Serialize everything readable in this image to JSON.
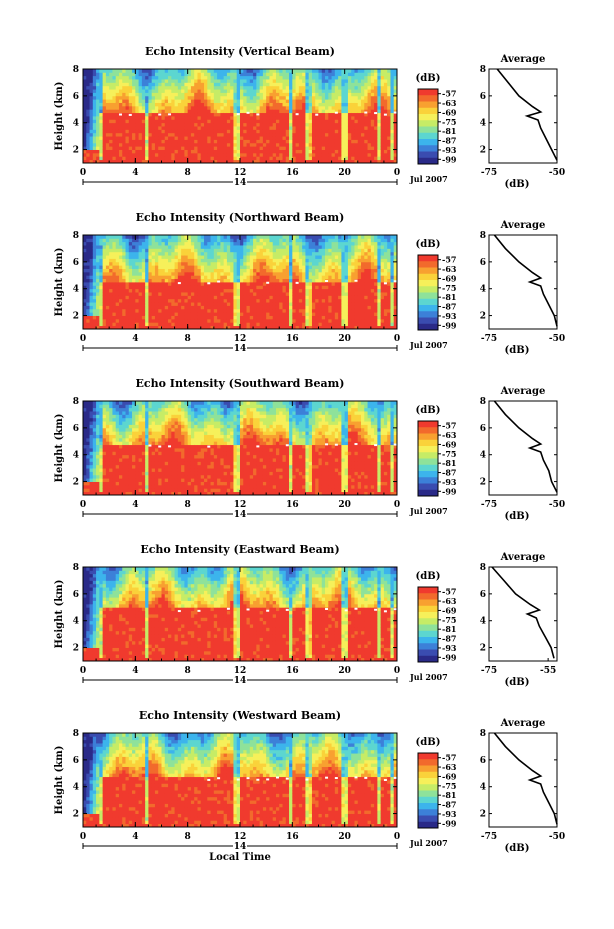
{
  "chart_data": [
    {
      "type": "heatmap",
      "title": "Echo Intensity (Vertical Beam)",
      "ylabel": "Height (km)",
      "x_ticks": [
        "0",
        "4",
        "8",
        "12",
        "16",
        "20",
        "0"
      ],
      "xlim": [
        0,
        24
      ],
      "y_ticks": [
        "2",
        "4",
        "6",
        "8"
      ],
      "ylim": [
        1,
        8
      ],
      "date_label": "14",
      "date_note": "Jul 2007",
      "colorbar": {
        "unit": "(dB)",
        "ticks": [
          "-57",
          "-63",
          "-69",
          "-75",
          "-81",
          "-87",
          "-93",
          "-99"
        ]
      },
      "bright_band_km": 4.8,
      "average": {
        "title": "Average",
        "xlabel": "(dB)",
        "x_ticks": [
          "-75",
          "-50"
        ],
        "xlim": [
          -75,
          -50
        ],
        "y_ticks": [
          "2",
          "4",
          "6",
          "8"
        ],
        "profile": [
          [
            -50,
            1.2
          ],
          [
            -52,
            2.0
          ],
          [
            -54,
            2.8
          ],
          [
            -56,
            3.6
          ],
          [
            -57,
            4.2
          ],
          [
            -61,
            4.5
          ],
          [
            -56,
            4.8
          ],
          [
            -59,
            5.2
          ],
          [
            -64,
            6.0
          ],
          [
            -68,
            7.0
          ],
          [
            -72,
            8.0
          ]
        ]
      }
    },
    {
      "type": "heatmap",
      "title": "Echo Intensity (Northward Beam)",
      "ylabel": "Height (km)",
      "x_ticks": [
        "0",
        "4",
        "8",
        "12",
        "16",
        "20",
        "0"
      ],
      "xlim": [
        0,
        24
      ],
      "y_ticks": [
        "2",
        "4",
        "6",
        "8"
      ],
      "ylim": [
        1,
        8
      ],
      "date_label": "14",
      "date_note": "Jul 2007",
      "colorbar": {
        "unit": "(dB)",
        "ticks": [
          "-57",
          "-63",
          "-69",
          "-75",
          "-81",
          "-87",
          "-93",
          "-99"
        ]
      },
      "bright_band_km": 4.6,
      "average": {
        "title": "Average",
        "xlabel": "(dB)",
        "x_ticks": [
          "-75",
          "-50"
        ],
        "xlim": [
          -75,
          -50
        ],
        "y_ticks": [
          "2",
          "4",
          "6",
          "8"
        ],
        "profile": [
          [
            -50,
            1.2
          ],
          [
            -51,
            2.0
          ],
          [
            -53,
            2.8
          ],
          [
            -55,
            3.6
          ],
          [
            -56,
            4.2
          ],
          [
            -60,
            4.5
          ],
          [
            -56,
            4.8
          ],
          [
            -59,
            5.2
          ],
          [
            -64,
            6.0
          ],
          [
            -69,
            7.0
          ],
          [
            -73,
            8.0
          ]
        ]
      }
    },
    {
      "type": "heatmap",
      "title": "Echo Intensity (Southward Beam)",
      "ylabel": "Height (km)",
      "x_ticks": [
        "0",
        "4",
        "8",
        "12",
        "16",
        "20",
        "0"
      ],
      "xlim": [
        0,
        24
      ],
      "y_ticks": [
        "2",
        "4",
        "6",
        "8"
      ],
      "ylim": [
        1,
        8
      ],
      "date_label": "14",
      "date_note": "Jul 2007",
      "colorbar": {
        "unit": "(dB)",
        "ticks": [
          "-57",
          "-63",
          "-69",
          "-75",
          "-81",
          "-87",
          "-93",
          "-99"
        ]
      },
      "bright_band_km": 4.8,
      "average": {
        "title": "Average",
        "xlabel": "(dB)",
        "x_ticks": [
          "-75",
          "-50"
        ],
        "xlim": [
          -75,
          -50
        ],
        "y_ticks": [
          "2",
          "4",
          "6",
          "8"
        ],
        "profile": [
          [
            -50,
            1.2
          ],
          [
            -52,
            2.0
          ],
          [
            -53,
            2.8
          ],
          [
            -55,
            3.6
          ],
          [
            -56,
            4.2
          ],
          [
            -60,
            4.5
          ],
          [
            -56,
            4.8
          ],
          [
            -59,
            5.2
          ],
          [
            -64,
            6.0
          ],
          [
            -69,
            7.0
          ],
          [
            -73,
            8.0
          ]
        ]
      }
    },
    {
      "type": "heatmap",
      "title": "Echo Intensity (Eastward Beam)",
      "ylabel": "Height (km)",
      "x_ticks": [
        "0",
        "4",
        "8",
        "12",
        "16",
        "20",
        "0"
      ],
      "xlim": [
        0,
        24
      ],
      "y_ticks": [
        "2",
        "4",
        "6",
        "8"
      ],
      "ylim": [
        1,
        8
      ],
      "date_label": "14",
      "date_note": "Jul 2007",
      "colorbar": {
        "unit": "(dB)",
        "ticks": [
          "-57",
          "-63",
          "-69",
          "-75",
          "-81",
          "-87",
          "-93",
          "-99"
        ]
      },
      "bright_band_km": 4.9,
      "average": {
        "title": "Average",
        "xlabel": "(dB)",
        "x_ticks": [
          "-75",
          "-55"
        ],
        "xlim": [
          -75,
          -52
        ],
        "y_ticks": [
          "2",
          "4",
          "6",
          "8"
        ],
        "profile": [
          [
            -53,
            1.2
          ],
          [
            -54,
            2.0
          ],
          [
            -56,
            2.8
          ],
          [
            -58,
            3.6
          ],
          [
            -59,
            4.2
          ],
          [
            -62,
            4.5
          ],
          [
            -58,
            4.8
          ],
          [
            -61,
            5.2
          ],
          [
            -66,
            6.0
          ],
          [
            -70,
            7.0
          ],
          [
            -74,
            8.0
          ]
        ]
      }
    },
    {
      "type": "heatmap",
      "title": "Echo Intensity (Westward Beam)",
      "ylabel": "Height (km)",
      "xlabel": "Local Time",
      "x_ticks": [
        "0",
        "4",
        "8",
        "12",
        "16",
        "20",
        "0"
      ],
      "xlim": [
        0,
        24
      ],
      "y_ticks": [
        "2",
        "4",
        "6",
        "8"
      ],
      "ylim": [
        1,
        8
      ],
      "date_label": "14",
      "date_note": "Jul 2007",
      "colorbar": {
        "unit": "(dB)",
        "ticks": [
          "-57",
          "-63",
          "-69",
          "-75",
          "-81",
          "-87",
          "-93",
          "-99"
        ]
      },
      "bright_band_km": 4.7,
      "average": {
        "title": "Average",
        "xlabel": "(dB)",
        "x_ticks": [
          "-75",
          "-50"
        ],
        "xlim": [
          -75,
          -50
        ],
        "y_ticks": [
          "2",
          "4",
          "6",
          "8"
        ],
        "profile": [
          [
            -50,
            1.2
          ],
          [
            -51,
            2.0
          ],
          [
            -53,
            2.8
          ],
          [
            -55,
            3.6
          ],
          [
            -56,
            4.2
          ],
          [
            -60,
            4.5
          ],
          [
            -56,
            4.8
          ],
          [
            -59,
            5.2
          ],
          [
            -64,
            6.0
          ],
          [
            -69,
            7.0
          ],
          [
            -73,
            8.0
          ]
        ]
      }
    }
  ],
  "colors": {
    "palette": [
      "#f03a2e",
      "#f26a2c",
      "#f8a030",
      "#fad23a",
      "#f6f05a",
      "#c6ec66",
      "#8ee29a",
      "#5cd6d0",
      "#3cb4ec",
      "#3c80d8",
      "#3a4cb0",
      "#2a2a88"
    ]
  }
}
